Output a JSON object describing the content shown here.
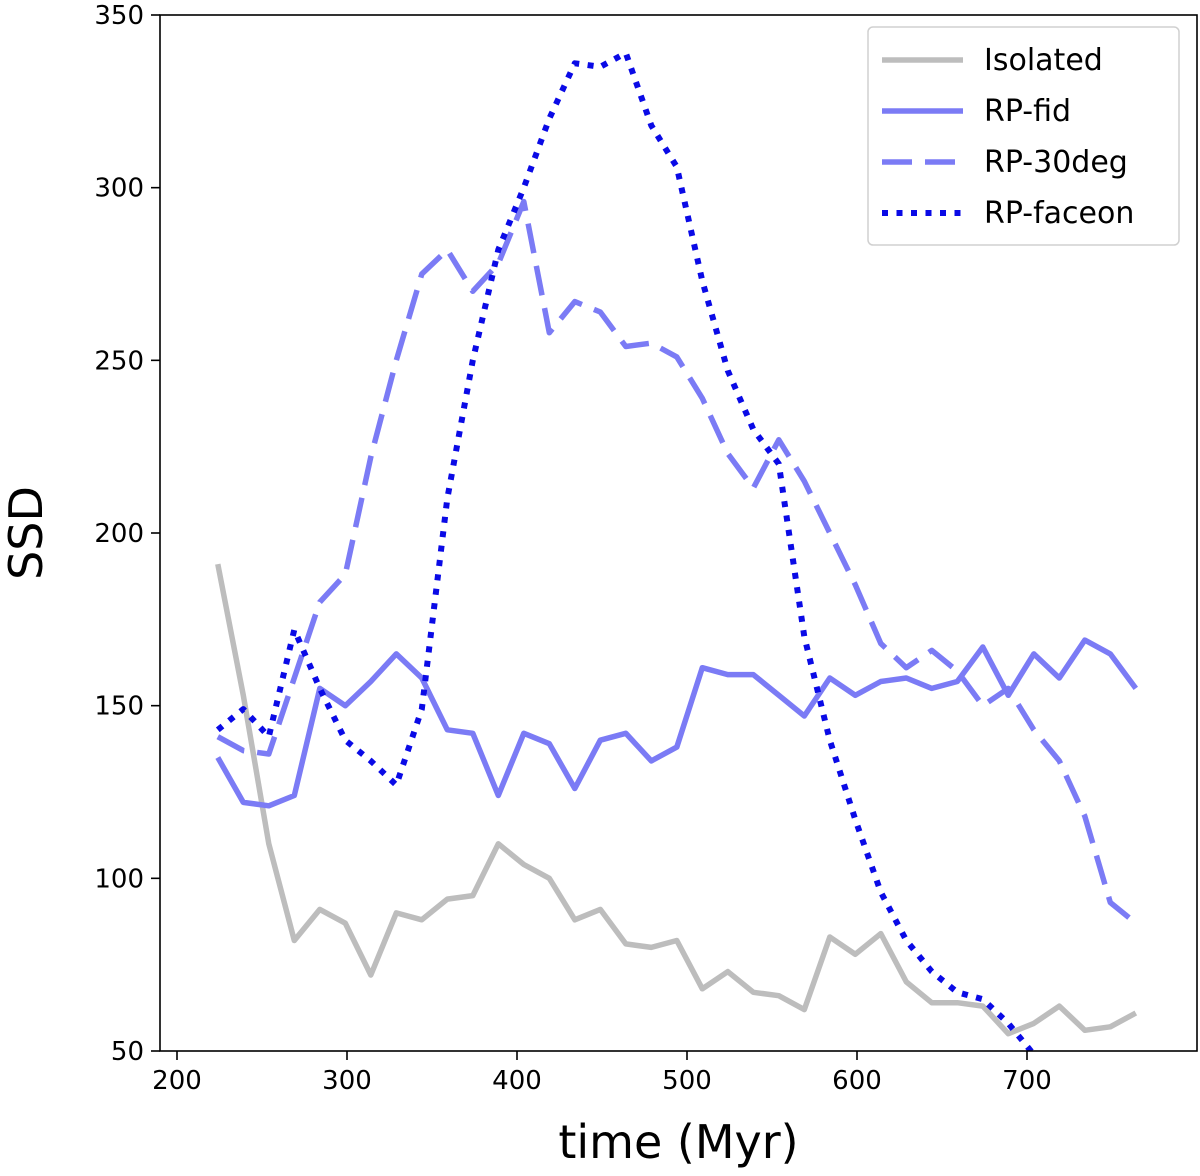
{
  "chart_data": {
    "type": "line",
    "title": "",
    "xlabel": "time (Myr)",
    "ylabel": "SSD",
    "xlim": [
      190,
      800
    ],
    "ylim": [
      50,
      350
    ],
    "xticks": [
      200,
      300,
      400,
      500,
      600,
      700
    ],
    "yticks": [
      50,
      100,
      150,
      200,
      250,
      300,
      350
    ],
    "grid": false,
    "legend_position": "top-right",
    "series": [
      {
        "name": "Isolated",
        "style": "solid",
        "color": "#bdbdbd",
        "x": [
          224,
          239,
          254,
          269,
          284,
          299,
          314,
          329,
          344,
          359,
          374,
          389,
          404,
          419,
          434,
          449,
          464,
          479,
          494,
          509,
          524,
          539,
          554,
          569,
          584,
          599,
          614,
          629,
          644,
          659,
          674,
          689,
          704,
          719,
          734,
          749,
          764
        ],
        "y": [
          191,
          153,
          110,
          82,
          91,
          87,
          72,
          90,
          88,
          94,
          95,
          110,
          104,
          100,
          88,
          91,
          81,
          80,
          82,
          68,
          73,
          67,
          66,
          62,
          83,
          78,
          84,
          70,
          64,
          64,
          63,
          55,
          58,
          63,
          56,
          57,
          61
        ]
      },
      {
        "name": "RP-fid",
        "style": "solid",
        "color": "#7b7bf5",
        "x": [
          224,
          239,
          254,
          269,
          284,
          299,
          314,
          329,
          344,
          359,
          374,
          389,
          404,
          419,
          434,
          449,
          464,
          479,
          494,
          509,
          524,
          539,
          554,
          569,
          584,
          599,
          614,
          629,
          644,
          659,
          674,
          689,
          704,
          719,
          734,
          749,
          764
        ],
        "y": [
          135,
          122,
          121,
          124,
          155,
          150,
          157,
          165,
          158,
          143,
          142,
          124,
          142,
          139,
          126,
          140,
          142,
          134,
          138,
          161,
          159,
          159,
          153,
          147,
          158,
          153,
          157,
          158,
          155,
          157,
          167,
          153,
          165,
          158,
          169,
          165,
          155
        ]
      },
      {
        "name": "RP-30deg",
        "style": "dashed",
        "color": "#7b7bf5",
        "x": [
          224,
          239,
          254,
          269,
          284,
          299,
          314,
          329,
          344,
          359,
          374,
          389,
          404,
          419,
          434,
          449,
          464,
          479,
          494,
          509,
          524,
          539,
          554,
          569,
          584,
          599,
          614,
          629,
          644,
          659,
          674,
          689,
          704,
          719,
          734,
          749,
          764
        ],
        "y": [
          141,
          137,
          136,
          158,
          180,
          188,
          222,
          250,
          275,
          282,
          270,
          278,
          296,
          258,
          267,
          264,
          254,
          255,
          251,
          239,
          223,
          213,
          227,
          215,
          200,
          185,
          168,
          161,
          166,
          160,
          150,
          155,
          143,
          134,
          118,
          93,
          87
        ]
      },
      {
        "name": "RP-faceon",
        "style": "dotted",
        "color": "#0a0ae6",
        "x": [
          224,
          239,
          254,
          269,
          284,
          299,
          314,
          329,
          344,
          359,
          374,
          389,
          404,
          419,
          434,
          449,
          464,
          479,
          494,
          509,
          524,
          539,
          554,
          569,
          584,
          599,
          614,
          629,
          644,
          659,
          674,
          689,
          704
        ],
        "y": [
          143,
          149,
          141,
          172,
          155,
          140,
          134,
          127,
          149,
          210,
          250,
          282,
          300,
          320,
          336,
          335,
          339,
          318,
          306,
          273,
          247,
          230,
          220,
          170,
          140,
          117,
          96,
          82,
          73,
          67,
          65,
          58,
          49
        ]
      }
    ]
  }
}
